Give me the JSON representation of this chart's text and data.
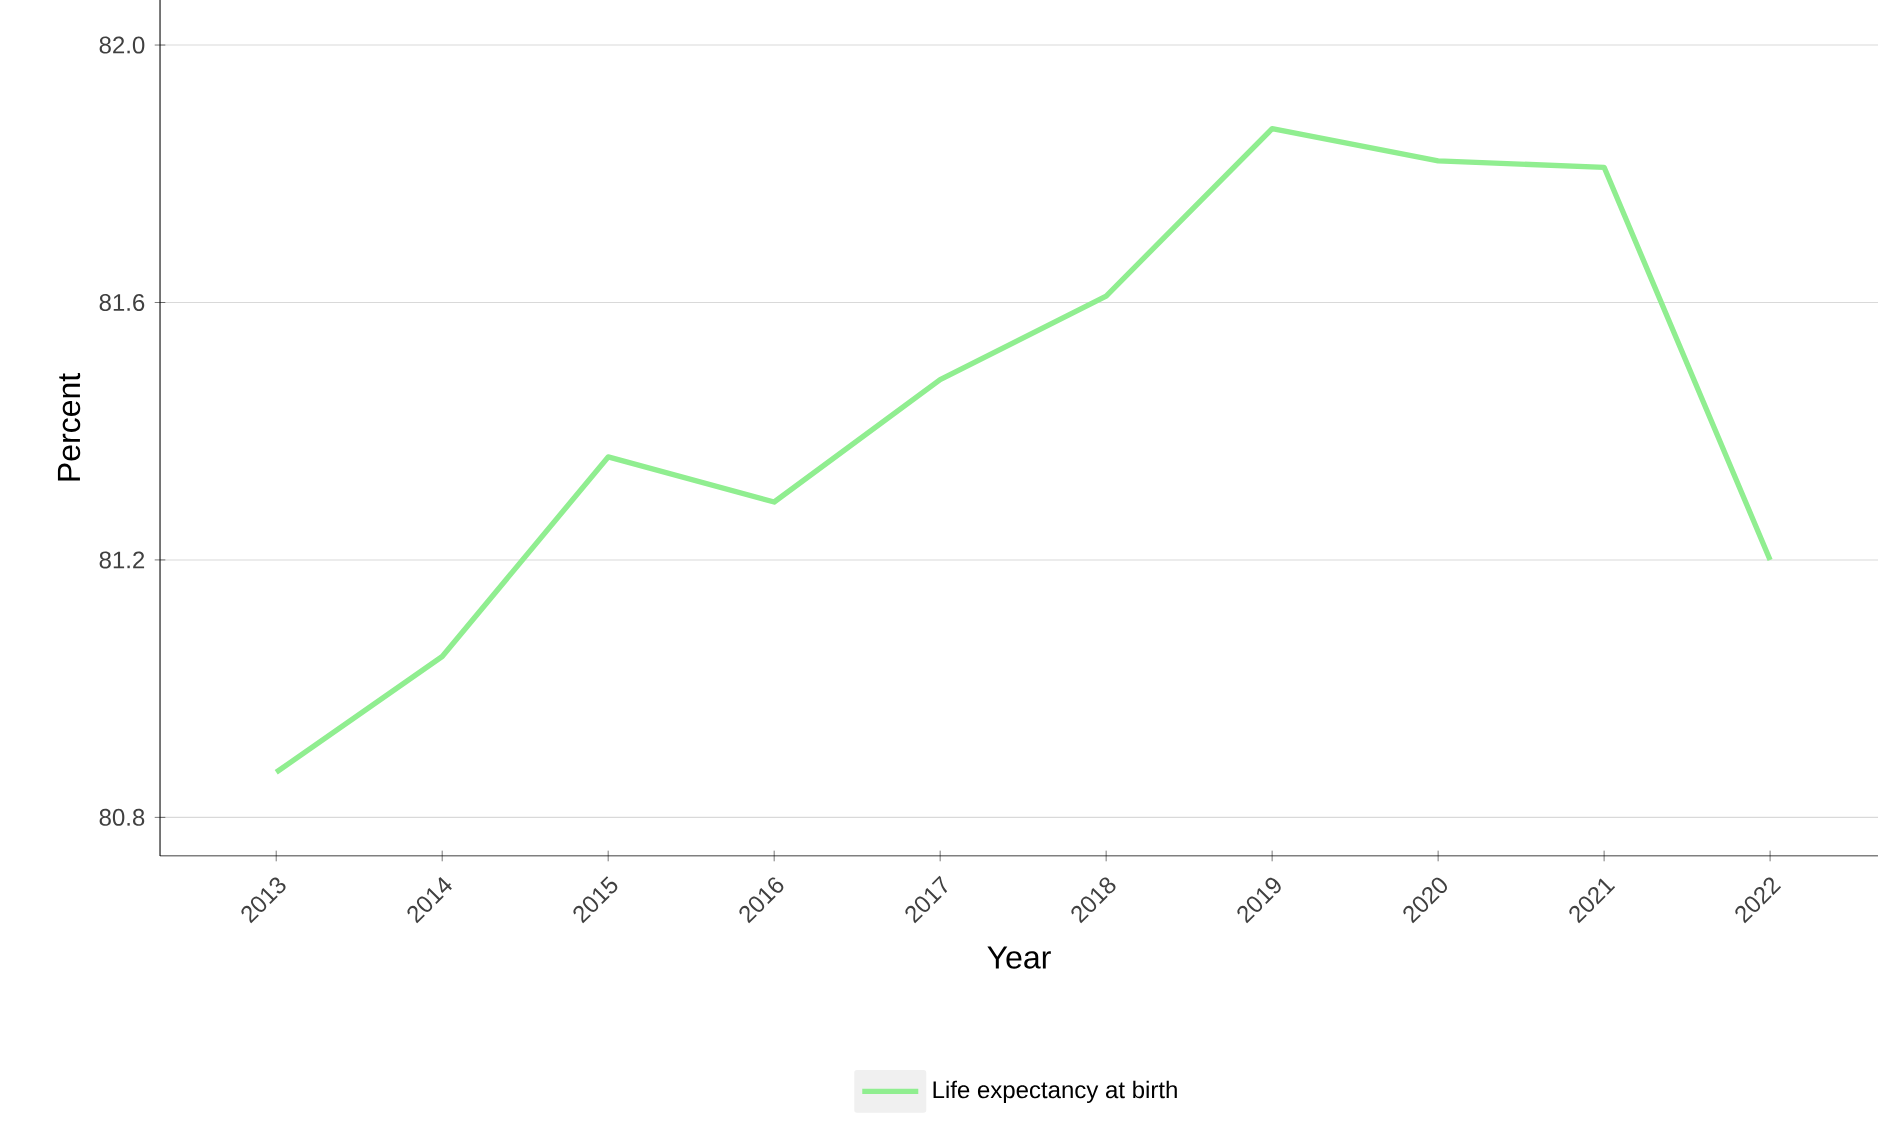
{
  "chart_data": {
    "type": "line",
    "xlabel": "Year",
    "ylabel": "Percent",
    "x": [
      2013,
      2014,
      2015,
      2016,
      2017,
      2018,
      2019,
      2020,
      2021,
      2022
    ],
    "series": [
      {
        "name": "Life expectancy at birth",
        "color": "#90ee90",
        "values": [
          80.87,
          81.05,
          81.36,
          81.29,
          81.48,
          81.61,
          81.87,
          81.82,
          81.81,
          81.2
        ]
      }
    ],
    "xlim": [
      2012.3,
      2022.65
    ],
    "ylim": [
      80.74,
      82.07
    ],
    "xticks": [
      2013,
      2014,
      2015,
      2016,
      2017,
      2018,
      2019,
      2020,
      2021,
      2022
    ],
    "yticks": [
      {
        "value": 80.8,
        "label": "80.8"
      },
      {
        "value": 81.2,
        "label": "81.2"
      },
      {
        "value": 81.6,
        "label": "81.6"
      },
      {
        "value": 82.0,
        "label": "82.0"
      }
    ],
    "grid": "y",
    "legend": "bottom",
    "marker": "none",
    "line_style": "solid"
  }
}
